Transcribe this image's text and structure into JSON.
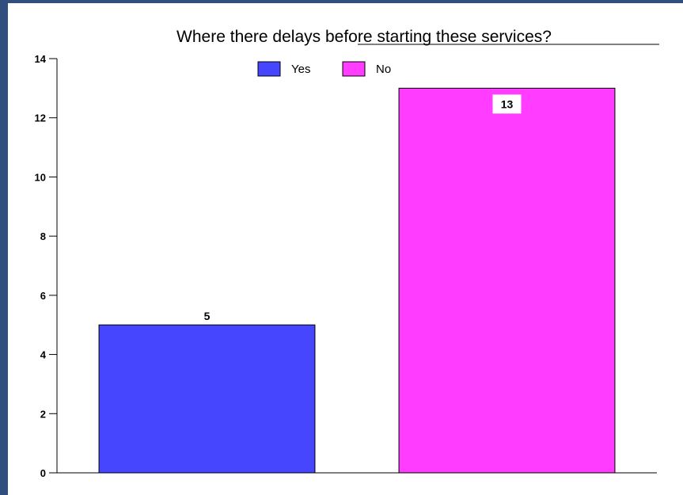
{
  "chart_data": {
    "type": "bar",
    "title": "Where there delays before starting these services?",
    "categories": [
      "Yes",
      "No"
    ],
    "values": [
      5,
      13
    ],
    "colors": [
      "#4646ff",
      "#ff3cff"
    ],
    "ylim": [
      0,
      14
    ],
    "yticks": [
      0,
      2,
      4,
      6,
      8,
      10,
      12,
      14
    ],
    "data_labels": [
      "5",
      "13"
    ],
    "legend": {
      "placement": "top-center",
      "entries": [
        {
          "label": "Yes",
          "color": "#4646ff"
        },
        {
          "label": "No",
          "color": "#ff3cff"
        }
      ]
    },
    "grid": false,
    "xlabel": "",
    "ylabel": ""
  }
}
